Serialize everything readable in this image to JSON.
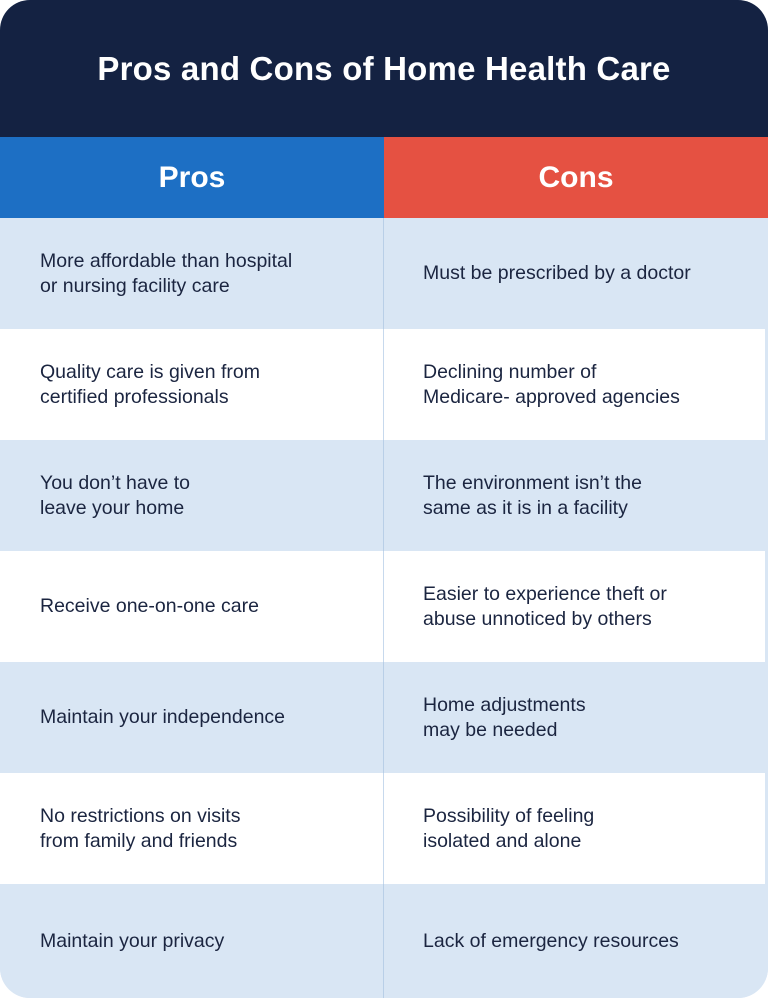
{
  "title": "Pros and Cons of Home Health Care",
  "headers": {
    "pros": "Pros",
    "cons": "Cons"
  },
  "rows": [
    {
      "pro": "More affordable than hospital\nor nursing facility care",
      "con": "Must be prescribed by a doctor"
    },
    {
      "pro": "Quality care is given from\ncertified professionals",
      "con": "Declining number of\nMedicare- approved agencies"
    },
    {
      "pro": "You don’t have to\nleave your home",
      "con": "The environment isn’t the\nsame as it is in a facility"
    },
    {
      "pro": "Receive one-on-one care",
      "con": "Easier to experience theft or\nabuse unnoticed by others"
    },
    {
      "pro": "Maintain your independence",
      "con": "Home adjustments\nmay be needed"
    },
    {
      "pro": "No restrictions on visits\nfrom family and friends",
      "con": "Possibility of feeling\nisolated and alone"
    },
    {
      "pro": "Maintain your privacy",
      "con": "Lack of emergency resources"
    }
  ],
  "colors": {
    "title_bg": "#142242",
    "pros_header": "#1d6fc4",
    "cons_header": "#e55142",
    "row_tint": "#d9e6f4",
    "text": "#1b2540"
  }
}
